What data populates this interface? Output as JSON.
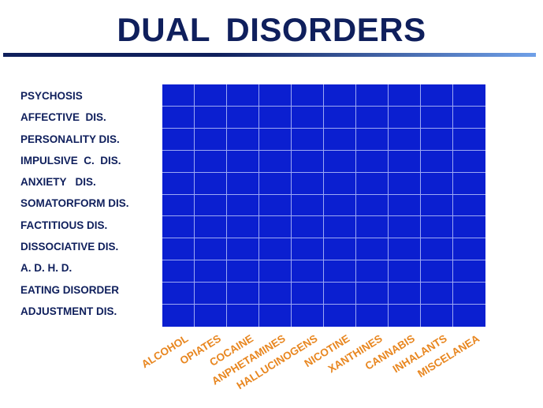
{
  "title": "DUAL  DISORDERS",
  "colors": {
    "title": "#0f1f5c",
    "row_label": "#0f1f5c",
    "col_label": "#e8861f",
    "matrix_fill": "#0b1fd0",
    "rule_left": "#0f1f5c",
    "rule_right": "#6fa0e8"
  },
  "rows": [
    "PSYCHOSIS",
    "AFFECTIVE  DIS.",
    "PERSONALITY DIS.",
    "IMPULSIVE  C.  DIS.",
    "ANXIETY   DIS.",
    "SOMATORFORM DIS.",
    "FACTITIOUS DIS.",
    "DISSOCIATIVE DIS.",
    "A. D. H. D.",
    "EATING DISORDER",
    "ADJUSTMENT DIS."
  ],
  "columns": [
    "ALCOHOL",
    "OPIATES",
    "COCAINE",
    "ANPHETAMINES",
    "HALLUCINOGENS",
    "NICOTINE",
    "XANTHINES",
    "CANNABIS",
    "INHALANTS",
    "MISCELANEA"
  ]
}
